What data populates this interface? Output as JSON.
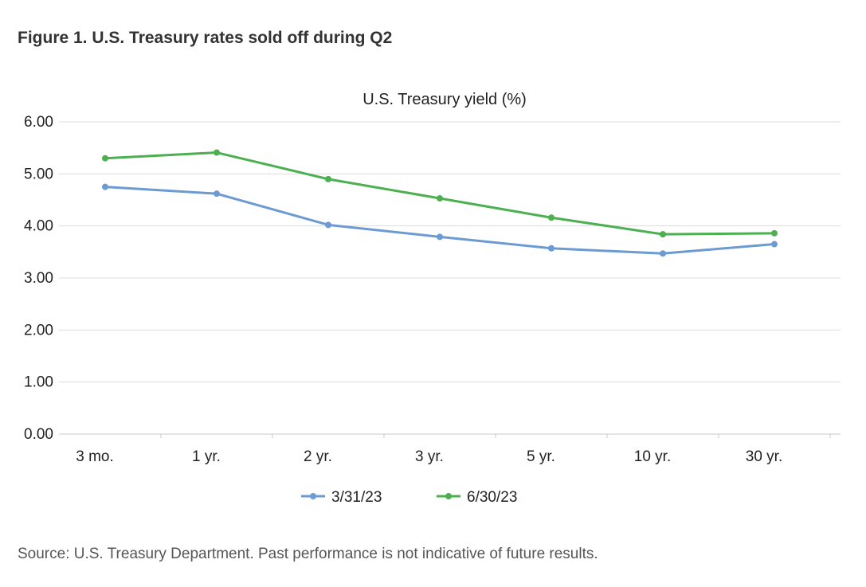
{
  "figure": {
    "title": "Figure 1. U.S. Treasury rates sold off during Q2",
    "source": "Source: U.S. Treasury Department. Past performance is not indicative of future results."
  },
  "chart_data": {
    "type": "line",
    "title": "U.S. Treasury yield (%)",
    "xlabel": "",
    "ylabel": "",
    "categories": [
      "3 mo.",
      "1 yr.",
      "2 yr.",
      "3 yr.",
      "5 yr.",
      "10 yr.",
      "30 yr."
    ],
    "ylim": [
      0,
      6
    ],
    "yticks": [
      "0.00",
      "1.00",
      "2.00",
      "3.00",
      "4.00",
      "5.00",
      "6.00"
    ],
    "grid": true,
    "legend_position": "bottom",
    "series": [
      {
        "name": "3/31/23",
        "color": "#6b9bd2",
        "values": [
          4.75,
          4.62,
          4.02,
          3.79,
          3.57,
          3.47,
          3.65
        ]
      },
      {
        "name": "6/30/23",
        "color": "#4caf50",
        "values": [
          5.3,
          5.41,
          4.9,
          4.53,
          4.16,
          3.84,
          3.86
        ]
      }
    ]
  }
}
